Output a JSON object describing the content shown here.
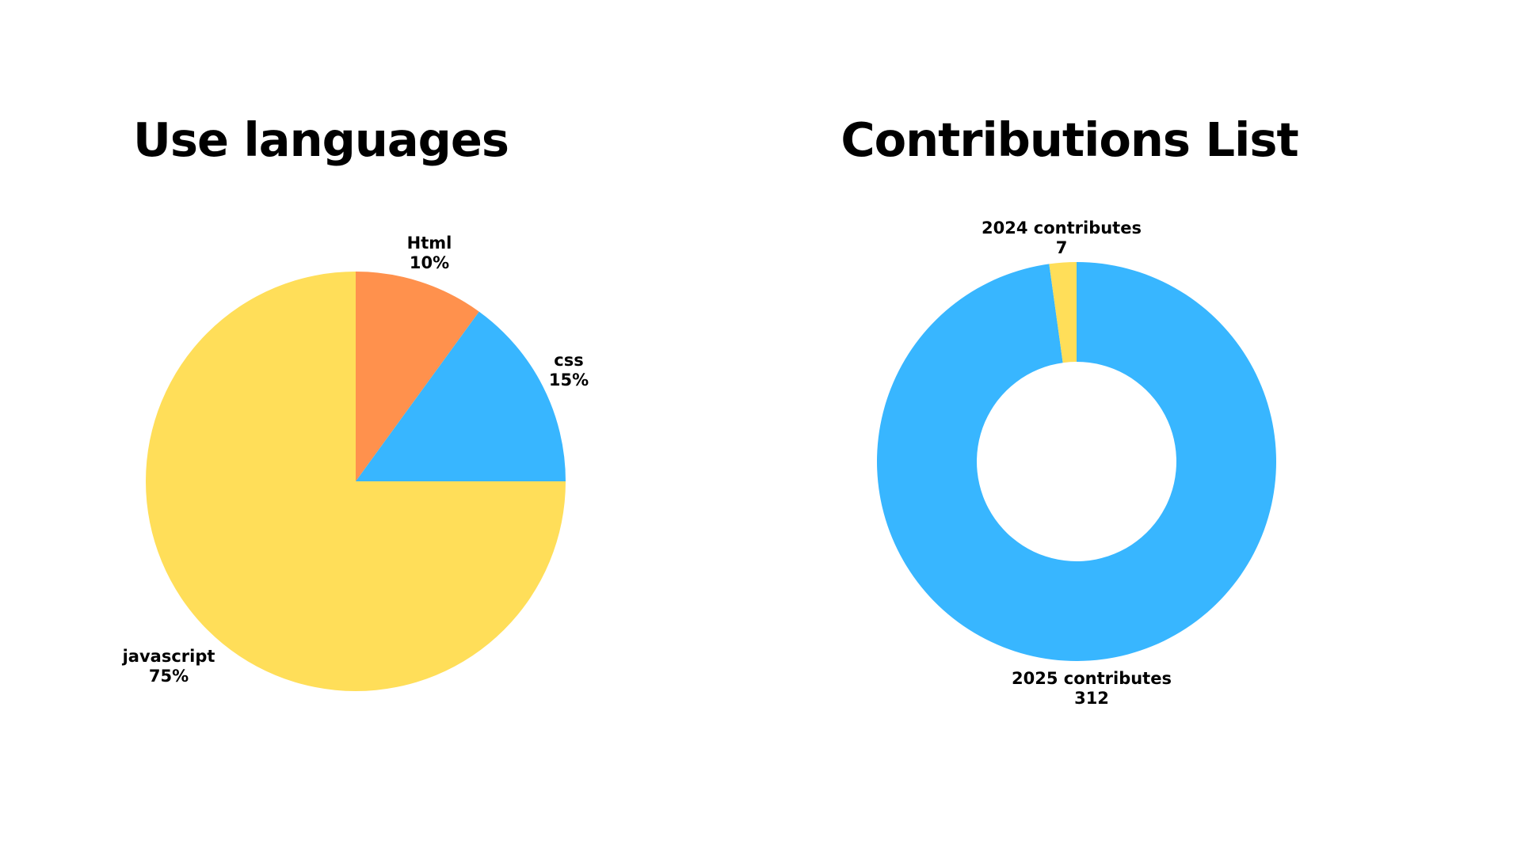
{
  "charts": {
    "languages": {
      "title": "Use languages"
    },
    "contributions": {
      "title": "Contributions List"
    }
  },
  "chart_data": [
    {
      "type": "pie",
      "title": "Use languages",
      "slices": [
        {
          "label": "Html",
          "display_value": "10%",
          "value": 10,
          "color": "#FF914D"
        },
        {
          "label": "css",
          "display_value": "15%",
          "value": 15,
          "color": "#38B6FF"
        },
        {
          "label": "javascript",
          "display_value": "75%",
          "value": 75,
          "color": "#FFDE59"
        }
      ]
    },
    {
      "type": "pie",
      "donut": true,
      "title": "Contributions List",
      "slices": [
        {
          "label": "2025 contributes",
          "display_value": "312",
          "value": 312,
          "color": "#38B6FF"
        },
        {
          "label": "2024 contributes",
          "display_value": "7",
          "value": 7,
          "color": "#FFDE59"
        }
      ]
    }
  ]
}
